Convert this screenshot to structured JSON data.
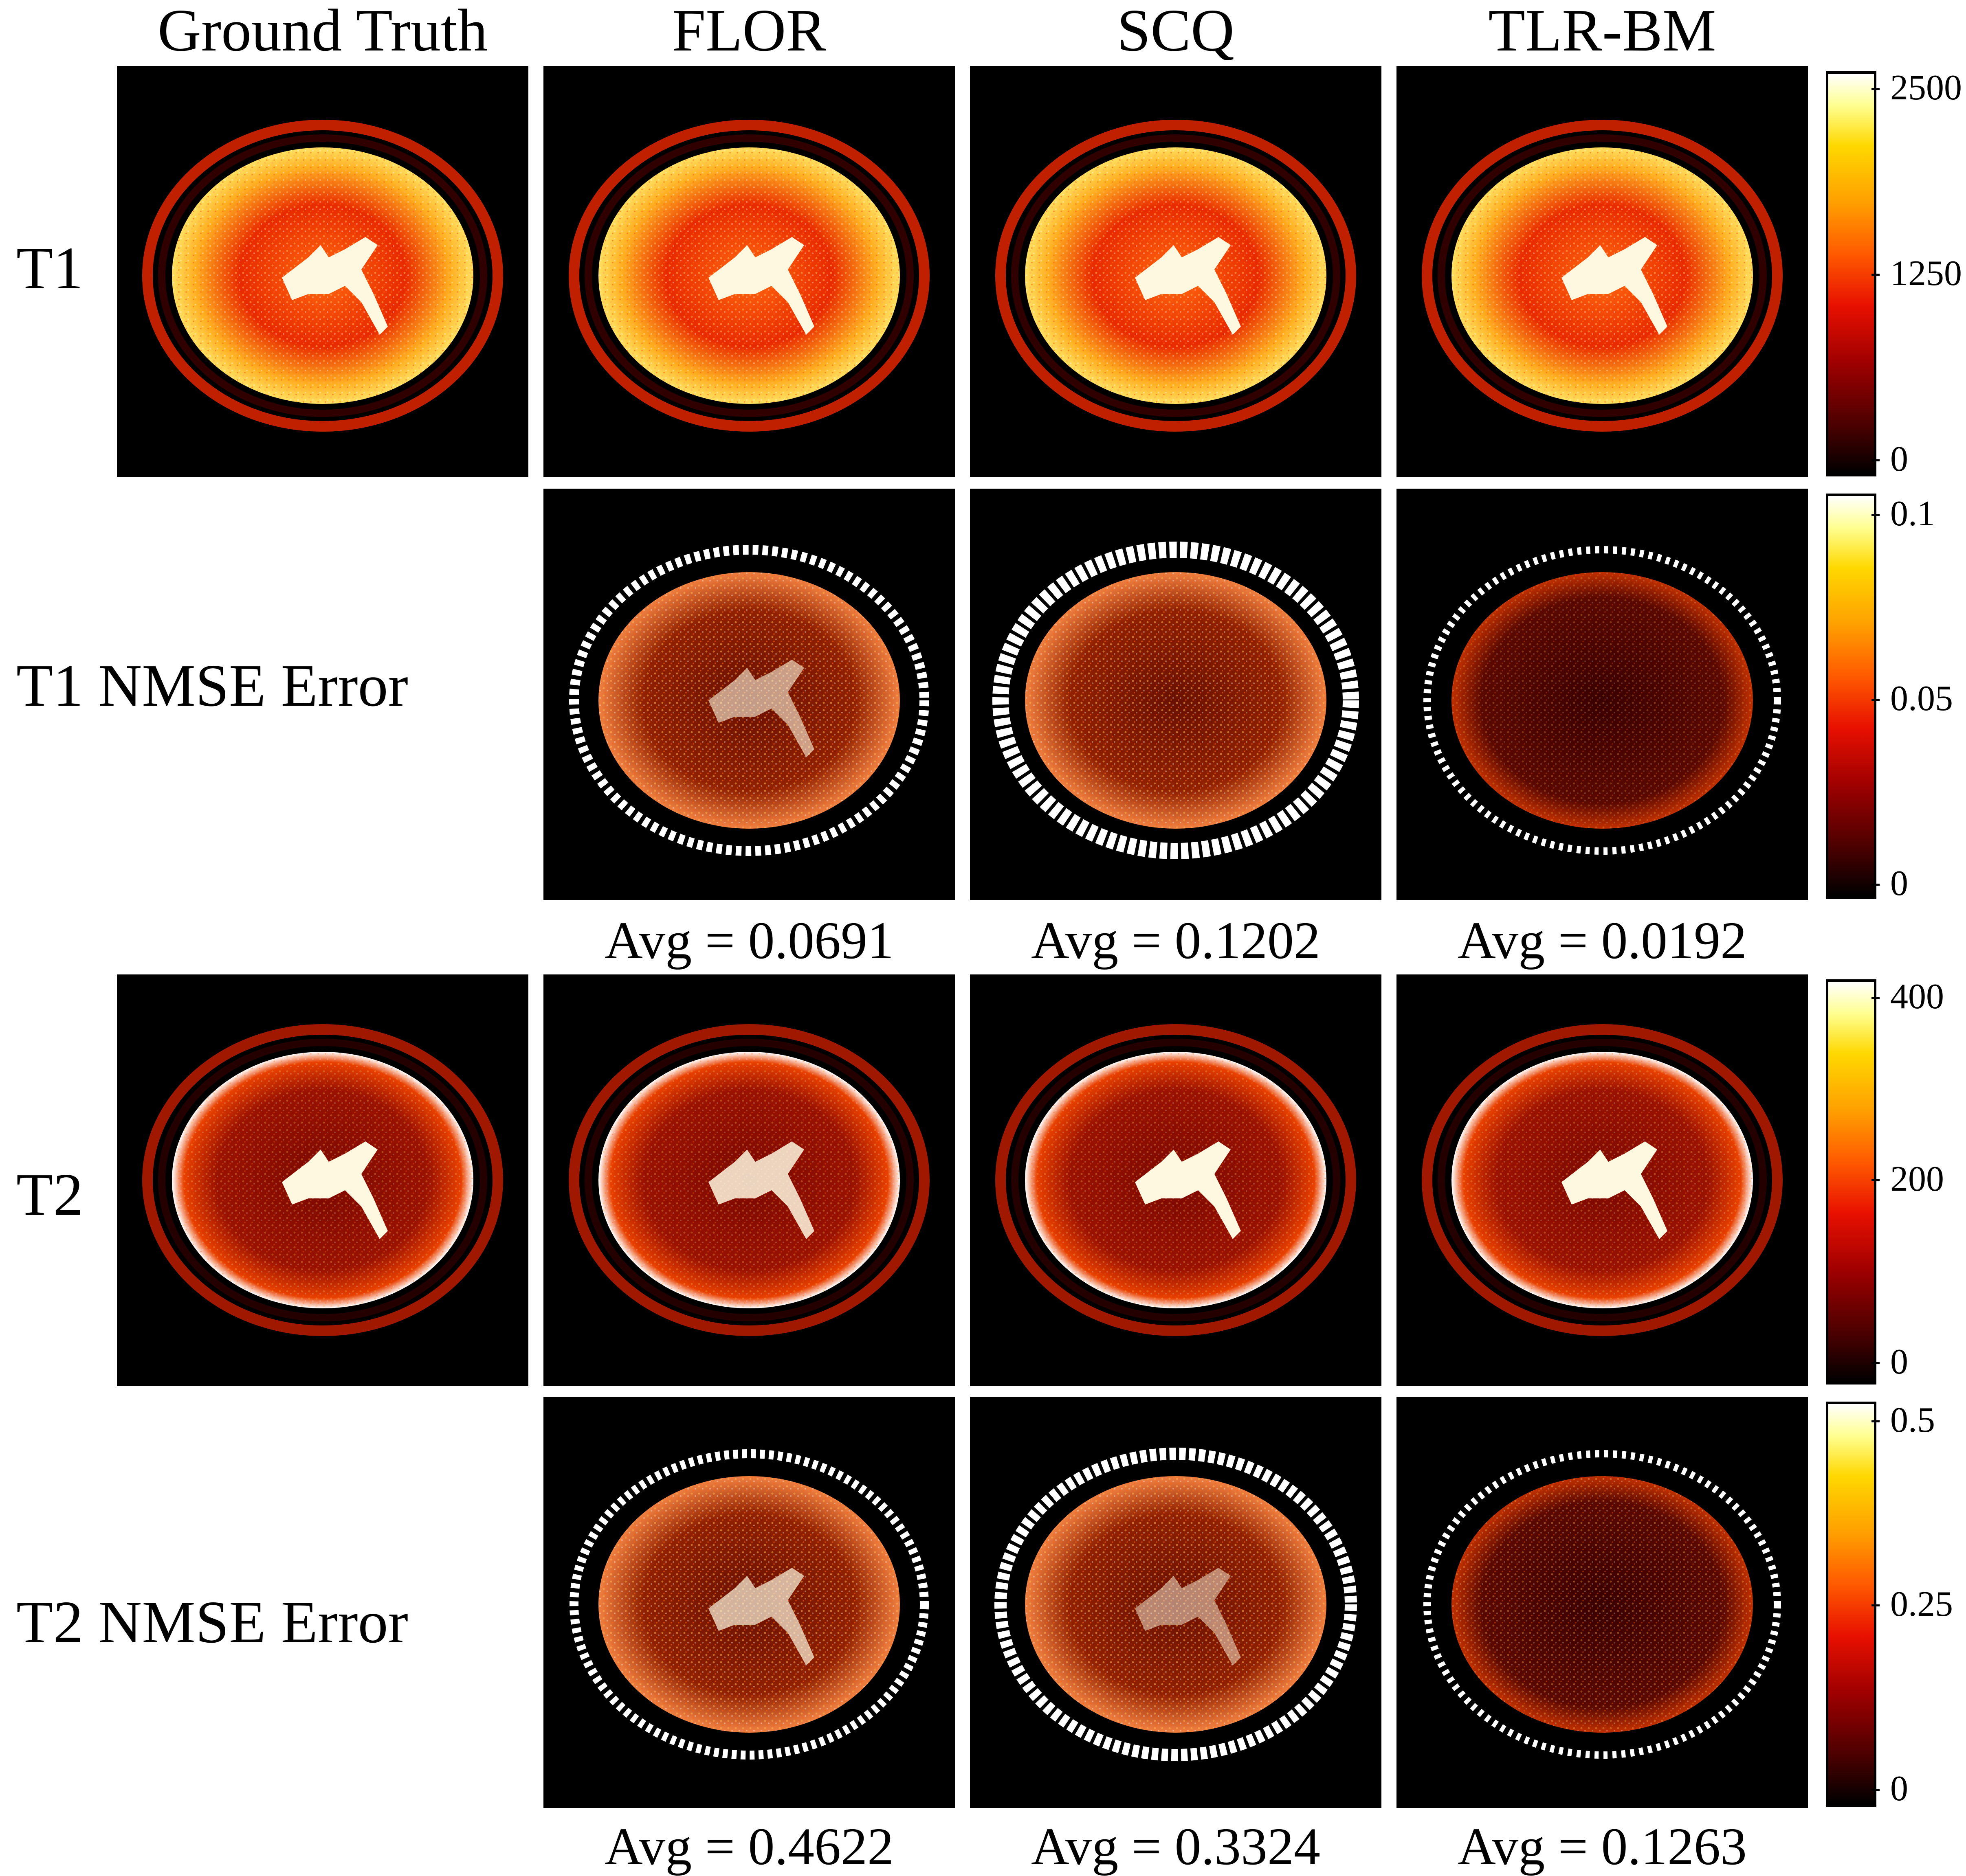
{
  "columns": [
    "Ground Truth",
    "FLOR",
    "SCQ",
    "TLR-BM"
  ],
  "rows": [
    "T1",
    "T1 NMSE Error",
    "T2",
    "T2 NMSE Error"
  ],
  "t1_error_avgs": [
    "Avg = 0.0691",
    "Avg = 0.1202",
    "Avg = 0.0192"
  ],
  "t2_error_avgs": [
    "Avg = 0.4622",
    "Avg = 0.3324",
    "Avg = 0.1263"
  ],
  "colorbars": [
    {
      "ticks": [
        "2500",
        "1250",
        "0"
      ]
    },
    {
      "ticks": [
        "0.1",
        "0.05",
        "0"
      ]
    },
    {
      "ticks": [
        "400",
        "200",
        "0"
      ]
    },
    {
      "ticks": [
        "0.5",
        "0.25",
        "0"
      ]
    }
  ],
  "colors": {
    "colormap_low": "#000000",
    "colormap_mid": "#e81000",
    "colormap_high": "#ffffff"
  }
}
